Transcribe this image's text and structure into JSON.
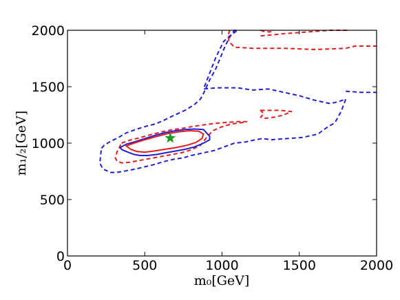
{
  "chart_data": {
    "type": "line",
    "xlabel": "m₀[GeV]",
    "ylabel": "m₁/₂[GeV]",
    "xlim": [
      0,
      2000
    ],
    "ylim": [
      0,
      2000
    ],
    "xticks": [
      "0",
      "500",
      "1000",
      "1500",
      "2000"
    ],
    "yticks": [
      "0",
      "500",
      "1000",
      "1500",
      "2000"
    ],
    "grid": false,
    "colors": {
      "red": "#e41a1c",
      "blue": "#1f1fd6",
      "star": "#1a9a1a"
    },
    "best_fit": {
      "x": 665,
      "y": 1045
    },
    "contours": [
      {
        "color": "blue",
        "style": "dashed",
        "closed": true,
        "points": [
          [
            220,
            955
          ],
          [
            240,
            985
          ],
          [
            285,
            1020
          ],
          [
            330,
            1050
          ],
          [
            380,
            1090
          ],
          [
            440,
            1120
          ],
          [
            510,
            1150
          ],
          [
            570,
            1170
          ],
          [
            620,
            1200
          ],
          [
            680,
            1240
          ],
          [
            760,
            1290
          ],
          [
            820,
            1340
          ],
          [
            860,
            1390
          ],
          [
            880,
            1440
          ],
          [
            920,
            1560
          ],
          [
            960,
            1660
          ],
          [
            990,
            1760
          ],
          [
            1020,
            1860
          ],
          [
            1050,
            1940
          ],
          [
            1080,
            2000
          ],
          [
            1100,
            2000
          ],
          [
            1050,
            1950
          ],
          [
            1010,
            1900
          ],
          [
            960,
            1760
          ],
          [
            880,
            1480
          ],
          [
            970,
            1490
          ],
          [
            1100,
            1490
          ],
          [
            1200,
            1470
          ],
          [
            1300,
            1480
          ],
          [
            1400,
            1450
          ],
          [
            1500,
            1420
          ],
          [
            1600,
            1380
          ],
          [
            1700,
            1350
          ],
          [
            1760,
            1370
          ],
          [
            1800,
            1390
          ],
          [
            1790,
            1350
          ],
          [
            1770,
            1280
          ],
          [
            1730,
            1180
          ],
          [
            1680,
            1140
          ],
          [
            1660,
            1120
          ],
          [
            1620,
            1080
          ],
          [
            1520,
            1050
          ],
          [
            1420,
            1040
          ],
          [
            1320,
            1030
          ],
          [
            1260,
            1040
          ],
          [
            1200,
            1025
          ],
          [
            1150,
            1010
          ],
          [
            1080,
            1000
          ],
          [
            1000,
            960
          ],
          [
            950,
            935
          ],
          [
            900,
            920
          ],
          [
            850,
            905
          ],
          [
            800,
            890
          ],
          [
            750,
            870
          ],
          [
            680,
            855
          ],
          [
            620,
            835
          ],
          [
            560,
            810
          ],
          [
            500,
            790
          ],
          [
            440,
            770
          ],
          [
            380,
            755
          ],
          [
            320,
            740
          ],
          [
            280,
            740
          ],
          [
            230,
            770
          ],
          [
            210,
            820
          ],
          [
            215,
            900
          ]
        ]
      },
      {
        "color": "blue",
        "style": "dashed",
        "closed": false,
        "points": [
          [
            1800,
            1460
          ],
          [
            1900,
            1450
          ],
          [
            2000,
            1450
          ]
        ]
      },
      {
        "color": "red",
        "style": "dashed",
        "closed": true,
        "points": [
          [
            350,
            1000
          ],
          [
            400,
            1025
          ],
          [
            460,
            1045
          ],
          [
            540,
            1075
          ],
          [
            610,
            1100
          ],
          [
            680,
            1120
          ],
          [
            740,
            1130
          ],
          [
            820,
            1150
          ],
          [
            900,
            1165
          ],
          [
            960,
            1175
          ],
          [
            1040,
            1185
          ],
          [
            1100,
            1190
          ],
          [
            1160,
            1190
          ],
          [
            1120,
            1180
          ],
          [
            1060,
            1170
          ],
          [
            990,
            1140
          ],
          [
            940,
            1110
          ],
          [
            900,
            1050
          ],
          [
            860,
            980
          ],
          [
            800,
            940
          ],
          [
            740,
            915
          ],
          [
            680,
            900
          ],
          [
            600,
            880
          ],
          [
            520,
            860
          ],
          [
            460,
            845
          ],
          [
            400,
            830
          ],
          [
            350,
            825
          ],
          [
            320,
            840
          ],
          [
            310,
            870
          ],
          [
            320,
            920
          ],
          [
            335,
            960
          ]
        ]
      },
      {
        "color": "red",
        "style": "dashed",
        "closed": true,
        "points": [
          [
            1250,
            1290
          ],
          [
            1330,
            1290
          ],
          [
            1380,
            1290
          ],
          [
            1450,
            1280
          ],
          [
            1400,
            1250
          ],
          [
            1340,
            1230
          ],
          [
            1280,
            1220
          ],
          [
            1250,
            1230
          ],
          [
            1270,
            1260
          ]
        ]
      },
      {
        "color": "red",
        "style": "dashed",
        "closed": false,
        "points": [
          [
            1050,
            2000
          ],
          [
            1040,
            1960
          ],
          [
            1045,
            1900
          ],
          [
            1080,
            1850
          ],
          [
            1200,
            1840
          ],
          [
            1400,
            1840
          ],
          [
            1600,
            1830
          ],
          [
            1800,
            1840
          ],
          [
            1860,
            1860
          ],
          [
            2000,
            1860
          ]
        ]
      },
      {
        "color": "red",
        "style": "dashed",
        "closed": false,
        "points": [
          [
            1250,
            1950
          ],
          [
            1330,
            1960
          ],
          [
            1400,
            1970
          ],
          [
            1500,
            1980
          ],
          [
            1600,
            1990
          ],
          [
            1700,
            2000
          ],
          [
            1820,
            2000
          ]
        ]
      },
      {
        "color": "red",
        "style": "dashed",
        "closed": false,
        "points": [
          [
            1250,
            2000
          ],
          [
            1270,
            1990
          ],
          [
            1310,
            1985
          ],
          [
            1330,
            2000
          ]
        ]
      },
      {
        "color": "blue",
        "style": "solid",
        "closed": true,
        "points": [
          [
            340,
            960
          ],
          [
            380,
            990
          ],
          [
            430,
            1010
          ],
          [
            500,
            1040
          ],
          [
            570,
            1070
          ],
          [
            640,
            1095
          ],
          [
            700,
            1110
          ],
          [
            760,
            1120
          ],
          [
            820,
            1125
          ],
          [
            880,
            1120
          ],
          [
            900,
            1090
          ],
          [
            920,
            1060
          ],
          [
            920,
            1030
          ],
          [
            880,
            1000
          ],
          [
            820,
            965
          ],
          [
            760,
            945
          ],
          [
            700,
            930
          ],
          [
            640,
            915
          ],
          [
            580,
            900
          ],
          [
            520,
            890
          ],
          [
            470,
            890
          ],
          [
            430,
            900
          ],
          [
            390,
            920
          ],
          [
            355,
            940
          ]
        ]
      },
      {
        "color": "red",
        "style": "solid",
        "closed": true,
        "points": [
          [
            380,
            975
          ],
          [
            430,
            1000
          ],
          [
            500,
            1030
          ],
          [
            580,
            1060
          ],
          [
            650,
            1085
          ],
          [
            720,
            1100
          ],
          [
            790,
            1110
          ],
          [
            850,
            1105
          ],
          [
            880,
            1080
          ],
          [
            870,
            1040
          ],
          [
            830,
            1005
          ],
          [
            770,
            980
          ],
          [
            700,
            960
          ],
          [
            630,
            945
          ],
          [
            560,
            930
          ],
          [
            500,
            920
          ],
          [
            450,
            925
          ],
          [
            410,
            945
          ]
        ]
      }
    ]
  }
}
